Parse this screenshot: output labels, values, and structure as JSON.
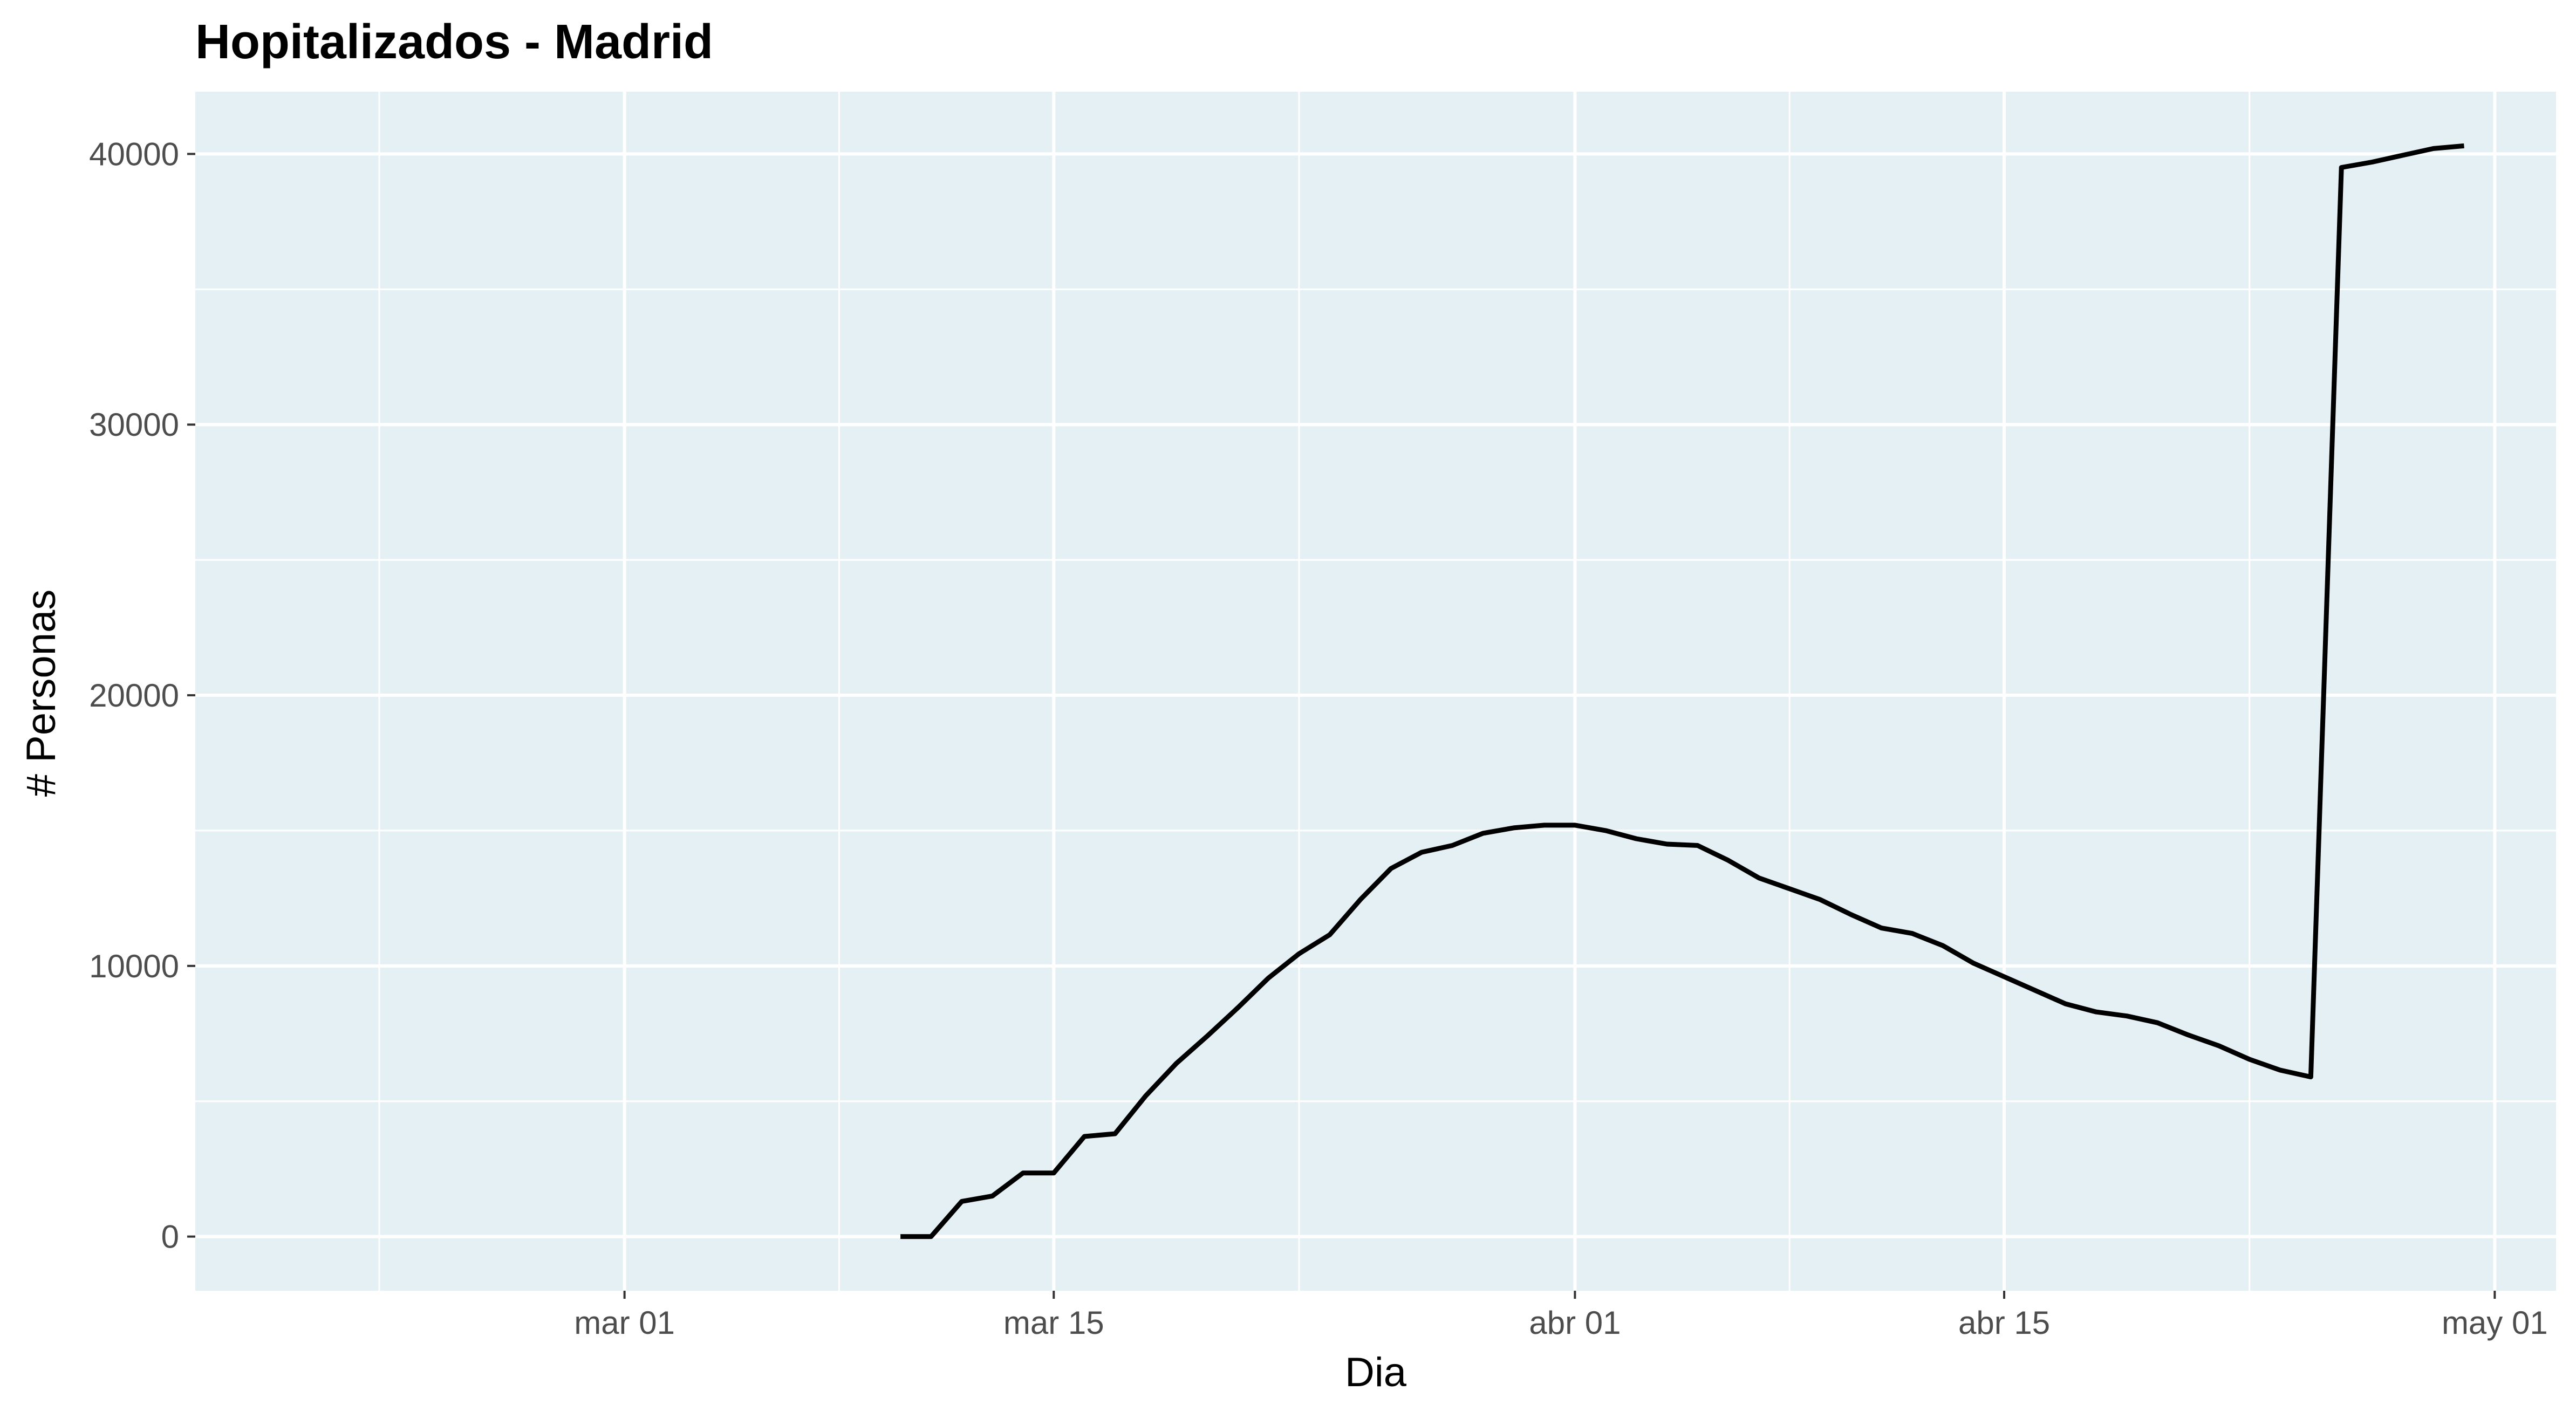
{
  "chart_data": {
    "type": "line",
    "title": "Hopitalizados - Madrid",
    "xlabel": "Dia",
    "ylabel": "# Personas",
    "x_ticks": [
      {
        "date": "2020-03-01",
        "label": "mar 01"
      },
      {
        "date": "2020-03-15",
        "label": "mar 15"
      },
      {
        "date": "2020-04-01",
        "label": "abr 01"
      },
      {
        "date": "2020-04-15",
        "label": "abr 15"
      },
      {
        "date": "2020-05-01",
        "label": "may 01"
      }
    ],
    "x_minor_ticks": [
      "2020-02-22",
      "2020-03-08",
      "2020-03-23",
      "2020-04-08",
      "2020-04-23"
    ],
    "y_ticks": [
      0,
      10000,
      20000,
      30000,
      40000
    ],
    "y_minor_ticks": [
      5000,
      15000,
      25000,
      35000
    ],
    "xlim": [
      "2020-02-16",
      "2020-05-03"
    ],
    "ylim": [
      -2000,
      42300
    ],
    "grid": true,
    "background": "#e5f0f5",
    "grid_color": "#ffffff",
    "line_color": "#000000",
    "series": [
      {
        "x": [
          "2020-03-10",
          "2020-03-11",
          "2020-03-12",
          "2020-03-13",
          "2020-03-14",
          "2020-03-15",
          "2020-03-16",
          "2020-03-17",
          "2020-03-18",
          "2020-03-19",
          "2020-03-20",
          "2020-03-21",
          "2020-03-22",
          "2020-03-23",
          "2020-03-24",
          "2020-03-25",
          "2020-03-26",
          "2020-03-27",
          "2020-03-28",
          "2020-03-29",
          "2020-03-30",
          "2020-03-31",
          "2020-04-01",
          "2020-04-02",
          "2020-04-03",
          "2020-04-04",
          "2020-04-05",
          "2020-04-06",
          "2020-04-07",
          "2020-04-08",
          "2020-04-09",
          "2020-04-10",
          "2020-04-11",
          "2020-04-12",
          "2020-04-13",
          "2020-04-14",
          "2020-04-15",
          "2020-04-16",
          "2020-04-17",
          "2020-04-18",
          "2020-04-19",
          "2020-04-20",
          "2020-04-21",
          "2020-04-22",
          "2020-04-23",
          "2020-04-24",
          "2020-04-25",
          "2020-04-26",
          "2020-04-27",
          "2020-04-28",
          "2020-04-29",
          "2020-04-30"
        ],
        "y": [
          0,
          0,
          1300,
          1500,
          2350,
          2350,
          3700,
          3800,
          5200,
          6400,
          7400,
          8450,
          9550,
          10450,
          11150,
          12450,
          13600,
          14200,
          14450,
          14900,
          15100,
          15200,
          15200,
          15000,
          14700,
          14500,
          14450,
          13900,
          13250,
          12850,
          12450,
          11900,
          11400,
          11200,
          10750,
          10100,
          9600,
          9100,
          8600,
          8300,
          8150,
          7900,
          7450,
          7050,
          6550,
          6150,
          5900,
          39500,
          39700,
          39950,
          40200,
          40300
        ]
      }
    ]
  }
}
